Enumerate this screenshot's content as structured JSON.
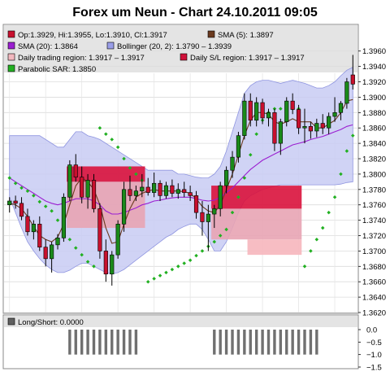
{
  "chart_data": [
    {
      "type": "candlestick",
      "title": "Forex um Neun - Chart 24.10.2011 09:05",
      "legend": [
        {
          "label": "Op:1.3929, Hi:1.3955, Lo:1.3910, Cl:1.3917",
          "color": "#c8102e",
          "marker": "square"
        },
        {
          "label": "SMA (5): 1.3897",
          "color": "#6b3a1f",
          "marker": "square"
        },
        {
          "label": "SMA (20): 1.3864",
          "color": "#9b1fd1",
          "marker": "square"
        },
        {
          "label": "Bollinger (20, 2): 1.3790 – 1.3939",
          "color": "#9a9ee8",
          "marker": "square"
        },
        {
          "label": "Daily trading region: 1.3917 – 1.3917",
          "color": "#f2b8bf",
          "marker": "square"
        },
        {
          "label": "Daily S/L region: 1.3917 – 1.3917",
          "color": "#d0103a",
          "marker": "square"
        },
        {
          "label": "Parabolic SAR: 1.3850",
          "color": "#22b022",
          "marker": "square"
        }
      ],
      "y_ticks": [
        "1.3620",
        "1.3640",
        "1.3660",
        "1.3680",
        "1.3700",
        "1.3720",
        "1.3740",
        "1.3760",
        "1.3780",
        "1.3800",
        "1.3820",
        "1.3840",
        "1.3860",
        "1.3880",
        "1.3900",
        "1.3920",
        "1.3940",
        "1.3960"
      ],
      "ylim": [
        1.362,
        1.3965
      ],
      "grid": true,
      "candles": [
        {
          "o": 1.376,
          "h": 1.377,
          "l": 1.375,
          "c": 1.3765
        },
        {
          "o": 1.3765,
          "h": 1.3772,
          "l": 1.3755,
          "c": 1.3762
        },
        {
          "o": 1.3762,
          "h": 1.377,
          "l": 1.374,
          "c": 1.3745
        },
        {
          "o": 1.3745,
          "h": 1.3755,
          "l": 1.372,
          "c": 1.3725
        },
        {
          "o": 1.3725,
          "h": 1.374,
          "l": 1.3715,
          "c": 1.3735
        },
        {
          "o": 1.3735,
          "h": 1.3745,
          "l": 1.37,
          "c": 1.3705
        },
        {
          "o": 1.3705,
          "h": 1.3715,
          "l": 1.368,
          "c": 1.369
        },
        {
          "o": 1.369,
          "h": 1.3712,
          "l": 1.3672,
          "c": 1.3708
        },
        {
          "o": 1.3708,
          "h": 1.3722,
          "l": 1.3702,
          "c": 1.3717
        },
        {
          "o": 1.3717,
          "h": 1.3775,
          "l": 1.3712,
          "c": 1.377
        },
        {
          "o": 1.377,
          "h": 1.3818,
          "l": 1.3765,
          "c": 1.3812
        },
        {
          "o": 1.3812,
          "h": 1.3826,
          "l": 1.379,
          "c": 1.3796
        },
        {
          "o": 1.3796,
          "h": 1.381,
          "l": 1.3762,
          "c": 1.377
        },
        {
          "o": 1.377,
          "h": 1.38,
          "l": 1.3755,
          "c": 1.3792
        },
        {
          "o": 1.3792,
          "h": 1.38,
          "l": 1.375,
          "c": 1.3755
        },
        {
          "o": 1.3755,
          "h": 1.3762,
          "l": 1.369,
          "c": 1.37
        },
        {
          "o": 1.37,
          "h": 1.3715,
          "l": 1.366,
          "c": 1.367
        },
        {
          "o": 1.367,
          "h": 1.37,
          "l": 1.3655,
          "c": 1.3695
        },
        {
          "o": 1.3695,
          "h": 1.374,
          "l": 1.369,
          "c": 1.3735
        },
        {
          "o": 1.3735,
          "h": 1.379,
          "l": 1.3725,
          "c": 1.378
        },
        {
          "o": 1.378,
          "h": 1.3798,
          "l": 1.3765,
          "c": 1.3772
        },
        {
          "o": 1.3772,
          "h": 1.3785,
          "l": 1.3765,
          "c": 1.3778
        },
        {
          "o": 1.3778,
          "h": 1.38,
          "l": 1.377,
          "c": 1.3783
        },
        {
          "o": 1.3783,
          "h": 1.3795,
          "l": 1.3772,
          "c": 1.3776
        },
        {
          "o": 1.3776,
          "h": 1.3802,
          "l": 1.377,
          "c": 1.3788
        },
        {
          "o": 1.3788,
          "h": 1.3792,
          "l": 1.3765,
          "c": 1.3772
        },
        {
          "o": 1.3772,
          "h": 1.379,
          "l": 1.3768,
          "c": 1.3785
        },
        {
          "o": 1.3785,
          "h": 1.3793,
          "l": 1.377,
          "c": 1.3775
        },
        {
          "o": 1.3775,
          "h": 1.3788,
          "l": 1.3768,
          "c": 1.378
        },
        {
          "o": 1.378,
          "h": 1.379,
          "l": 1.377,
          "c": 1.3776
        },
        {
          "o": 1.3776,
          "h": 1.3785,
          "l": 1.3765,
          "c": 1.3772
        },
        {
          "o": 1.3772,
          "h": 1.3778,
          "l": 1.3742,
          "c": 1.375
        },
        {
          "o": 1.375,
          "h": 1.3765,
          "l": 1.372,
          "c": 1.3738
        },
        {
          "o": 1.3738,
          "h": 1.376,
          "l": 1.37,
          "c": 1.3748
        },
        {
          "o": 1.3748,
          "h": 1.376,
          "l": 1.373,
          "c": 1.3755
        },
        {
          "o": 1.3755,
          "h": 1.379,
          "l": 1.3745,
          "c": 1.3785
        },
        {
          "o": 1.3785,
          "h": 1.381,
          "l": 1.3775,
          "c": 1.3805
        },
        {
          "o": 1.3805,
          "h": 1.383,
          "l": 1.3795,
          "c": 1.3822
        },
        {
          "o": 1.3822,
          "h": 1.3855,
          "l": 1.3815,
          "c": 1.385
        },
        {
          "o": 1.385,
          "h": 1.3905,
          "l": 1.3845,
          "c": 1.3895
        },
        {
          "o": 1.3895,
          "h": 1.3905,
          "l": 1.3862,
          "c": 1.387
        },
        {
          "o": 1.387,
          "h": 1.39,
          "l": 1.3862,
          "c": 1.3893
        },
        {
          "o": 1.3893,
          "h": 1.3898,
          "l": 1.3865,
          "c": 1.3873
        },
        {
          "o": 1.3873,
          "h": 1.3885,
          "l": 1.3862,
          "c": 1.388
        },
        {
          "o": 1.388,
          "h": 1.3885,
          "l": 1.383,
          "c": 1.384
        },
        {
          "o": 1.384,
          "h": 1.3872,
          "l": 1.3825,
          "c": 1.3868
        },
        {
          "o": 1.3868,
          "h": 1.39,
          "l": 1.3862,
          "c": 1.3895
        },
        {
          "o": 1.3895,
          "h": 1.3905,
          "l": 1.3878,
          "c": 1.3884
        },
        {
          "o": 1.3884,
          "h": 1.389,
          "l": 1.3852,
          "c": 1.386
        },
        {
          "o": 1.386,
          "h": 1.3885,
          "l": 1.384,
          "c": 1.3862
        },
        {
          "o": 1.3862,
          "h": 1.3868,
          "l": 1.3846,
          "c": 1.3856
        },
        {
          "o": 1.3856,
          "h": 1.3872,
          "l": 1.3848,
          "c": 1.3866
        },
        {
          "o": 1.3866,
          "h": 1.3878,
          "l": 1.3852,
          "c": 1.386
        },
        {
          "o": 1.386,
          "h": 1.388,
          "l": 1.3852,
          "c": 1.3875
        },
        {
          "o": 1.3875,
          "h": 1.39,
          "l": 1.3868,
          "c": 1.388
        },
        {
          "o": 1.388,
          "h": 1.3895,
          "l": 1.387,
          "c": 1.3892
        },
        {
          "o": 1.3892,
          "h": 1.3925,
          "l": 1.3885,
          "c": 1.392
        },
        {
          "o": 1.3929,
          "h": 1.3955,
          "l": 1.391,
          "c": 1.3917
        }
      ],
      "sma5": [
        1.3762,
        1.376,
        1.3755,
        1.3745,
        1.3732,
        1.372,
        1.3715,
        1.3712,
        1.3718,
        1.3735,
        1.376,
        1.3785,
        1.3795,
        1.379,
        1.378,
        1.376,
        1.373,
        1.371,
        1.3712,
        1.3735,
        1.3755,
        1.377,
        1.3775,
        1.3778,
        1.378,
        1.3778,
        1.3778,
        1.3778,
        1.3778,
        1.3777,
        1.3775,
        1.3768,
        1.3758,
        1.3752,
        1.375,
        1.376,
        1.378,
        1.38,
        1.3825,
        1.385,
        1.387,
        1.388,
        1.388,
        1.3878,
        1.3868,
        1.3865,
        1.3868,
        1.3872,
        1.3868,
        1.3868,
        1.3868,
        1.386,
        1.386,
        1.3865,
        1.387,
        1.388,
        1.3895,
        1.3897
      ],
      "sma20": [
        1.3795,
        1.379,
        1.3785,
        1.378,
        1.3775,
        1.377,
        1.3765,
        1.3762,
        1.376,
        1.3762,
        1.3765,
        1.3768,
        1.3768,
        1.3768,
        1.3765,
        1.376,
        1.3752,
        1.3748,
        1.3748,
        1.375,
        1.3753,
        1.3756,
        1.376,
        1.3762,
        1.3765,
        1.3766,
        1.3768,
        1.3769,
        1.377,
        1.377,
        1.377,
        1.3768,
        1.3766,
        1.3765,
        1.3766,
        1.377,
        1.3776,
        1.3782,
        1.379,
        1.3798,
        1.3806,
        1.3812,
        1.3818,
        1.3822,
        1.3826,
        1.383,
        1.3834,
        1.3838,
        1.384,
        1.3842,
        1.3845,
        1.3847,
        1.3849,
        1.3852,
        1.3855,
        1.3858,
        1.3862,
        1.3864
      ],
      "boll_upper": [
        1.385,
        1.385,
        1.385,
        1.385,
        1.385,
        1.385,
        1.3845,
        1.384,
        1.3835,
        1.3835,
        1.3845,
        1.3855,
        1.3855,
        1.385,
        1.3848,
        1.3845,
        1.384,
        1.3835,
        1.383,
        1.3825,
        1.382,
        1.3815,
        1.381,
        1.3805,
        1.3805,
        1.3805,
        1.3805,
        1.3805,
        1.38,
        1.38,
        1.3798,
        1.3796,
        1.3795,
        1.3795,
        1.38,
        1.381,
        1.383,
        1.3855,
        1.388,
        1.3905,
        1.3915,
        1.392,
        1.3922,
        1.3922,
        1.392,
        1.3918,
        1.392,
        1.3922,
        1.392,
        1.3918,
        1.3915,
        1.3912,
        1.3912,
        1.3915,
        1.392,
        1.3928,
        1.3935,
        1.3939
      ],
      "boll_lower": [
        1.377,
        1.375,
        1.373,
        1.3712,
        1.37,
        1.369,
        1.3682,
        1.3676,
        1.3672,
        1.3672,
        1.3675,
        1.368,
        1.3684,
        1.3684,
        1.368,
        1.3676,
        1.3672,
        1.367,
        1.3672,
        1.3676,
        1.3682,
        1.3688,
        1.3694,
        1.37,
        1.3706,
        1.3712,
        1.3718,
        1.3722,
        1.3728,
        1.3732,
        1.3735,
        1.3735,
        1.3728,
        1.3715,
        1.37,
        1.37,
        1.3712,
        1.373,
        1.375,
        1.3765,
        1.3772,
        1.3776,
        1.378,
        1.3782,
        1.3784,
        1.3786,
        1.3786,
        1.3786,
        1.3786,
        1.3786,
        1.3786,
        1.3786,
        1.3786,
        1.3786,
        1.3786,
        1.3787,
        1.3789,
        1.379
      ],
      "sar": [
        1.3795,
        1.3788,
        1.3782,
        1.3778,
        1.3772,
        1.3764,
        1.3758,
        1.3752,
        1.374,
        1.3728,
        1.3715,
        1.3704,
        1.3695,
        1.3686,
        1.368,
        1.386,
        1.3852,
        1.3845,
        1.3835,
        1.382,
        1.3808,
        1.38,
        1.3792,
        1.366,
        1.3664,
        1.3668,
        1.3672,
        1.3676,
        1.368,
        1.3684,
        1.3688,
        1.3694,
        1.37,
        1.3706,
        1.3712,
        1.372,
        1.3728,
        1.375,
        1.377,
        1.3795,
        1.3825,
        1.3852,
        1.387,
        1.388,
        1.3885,
        1.3885,
        1.3885,
        1.3885,
        1.3885,
        1.368,
        1.37,
        1.3715,
        1.373,
        1.375,
        1.377,
        1.38,
        1.383,
        1.385
      ],
      "regions": [
        {
          "kind": "sl",
          "start": 10,
          "end": 22,
          "from": 1.379,
          "to": 1.381
        },
        {
          "kind": "trading",
          "start": 10,
          "end": 22,
          "from": 1.373,
          "to": 1.379
        },
        {
          "kind": "sl",
          "start": 34,
          "end": 48,
          "from": 1.3755,
          "to": 1.3785
        },
        {
          "kind": "trading",
          "start": 34,
          "end": 48,
          "from": 1.3715,
          "to": 1.3755
        },
        {
          "kind": "trading-low",
          "start": 40,
          "end": 48,
          "from": 1.3695,
          "to": 1.3715
        }
      ]
    },
    {
      "type": "bar",
      "legend": {
        "label": "Long/Short: 0.0000",
        "color": "#606060"
      },
      "y_ticks": [
        "0.0",
        "−0.5",
        "−1.0",
        "−1.5"
      ],
      "ylim": [
        -1.5,
        0.0
      ],
      "values": [
        0,
        0,
        0,
        0,
        0,
        0,
        0,
        0,
        0,
        0,
        -1,
        -1,
        -1,
        -1,
        -1,
        -1,
        -1,
        -1,
        -1,
        -1,
        -1,
        -1,
        0,
        0,
        0,
        0,
        0,
        0,
        0,
        0,
        0,
        0,
        0,
        0,
        -1,
        -1,
        -1,
        -1,
        -1,
        -1,
        -1,
        -1,
        -1,
        -1,
        -1,
        -1,
        -1,
        -1,
        -1,
        -1,
        -1,
        -1,
        0,
        0,
        0,
        0,
        0,
        0
      ]
    }
  ]
}
